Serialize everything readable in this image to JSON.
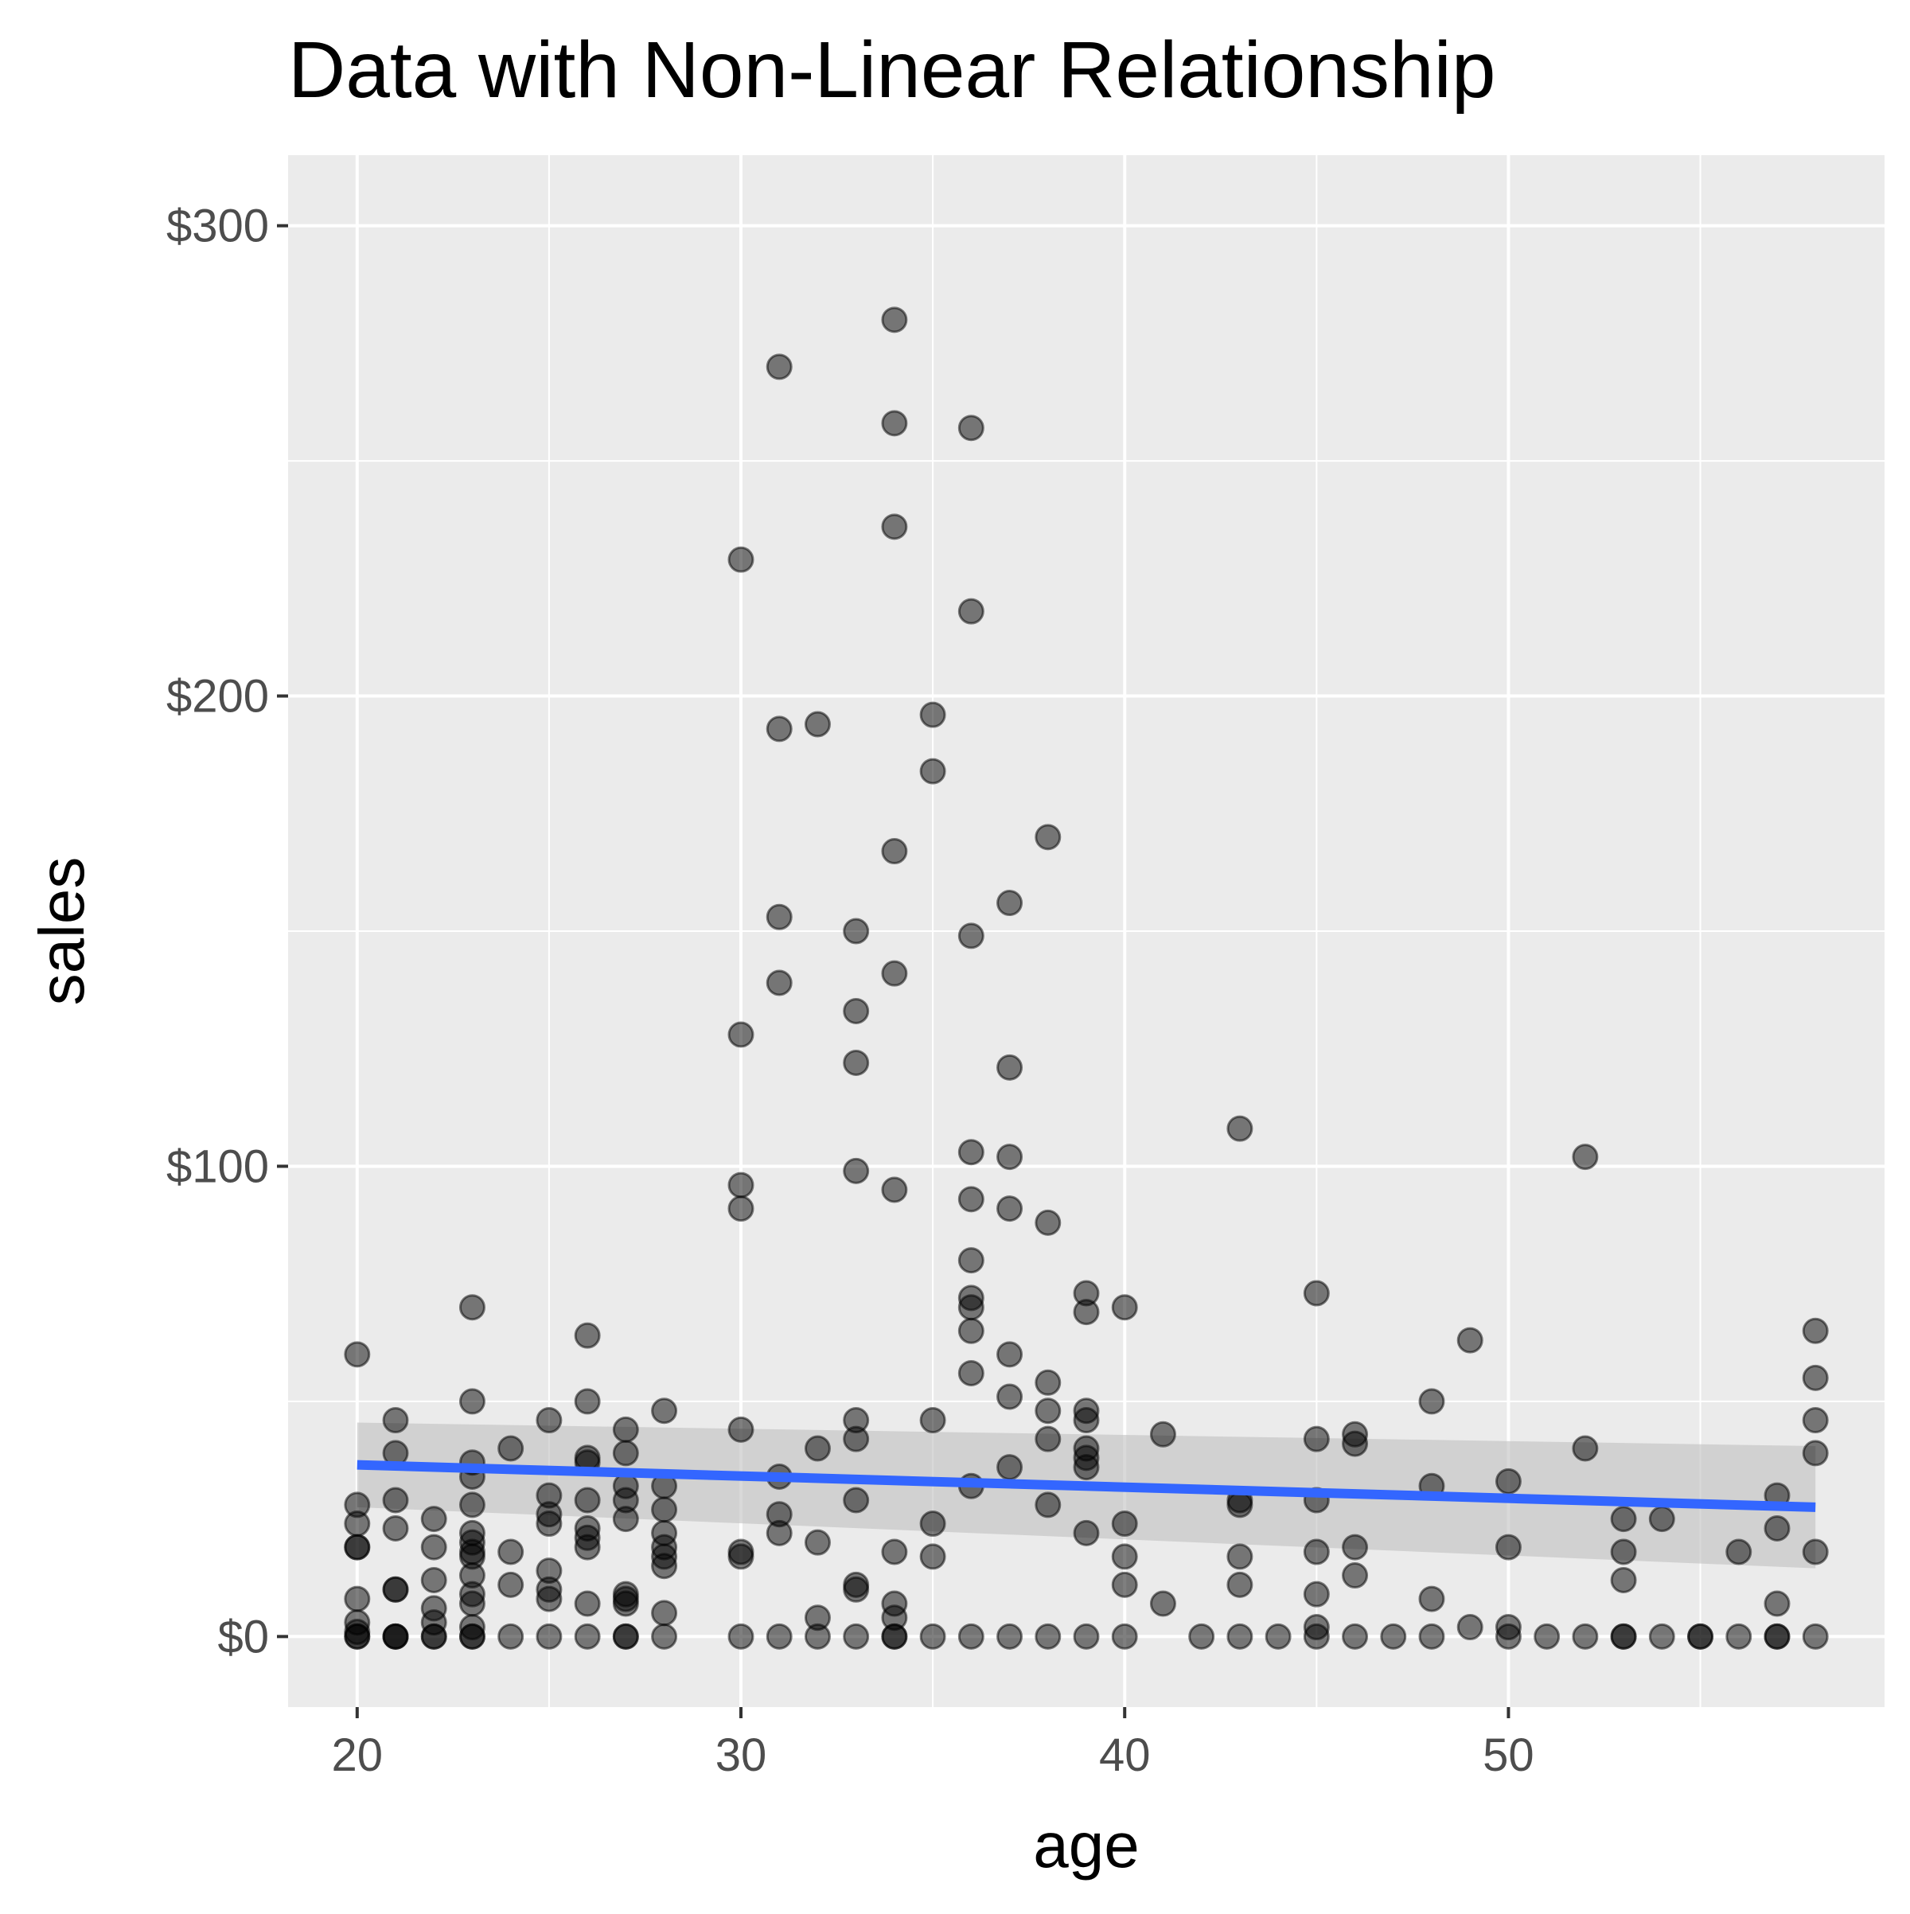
{
  "chart_data": {
    "type": "scatter",
    "title": "Data with Non-Linear Relationship",
    "xlabel": "age",
    "ylabel": "sales",
    "xlim": [
      18.2,
      59.8
    ],
    "ylim": [
      -15,
      315
    ],
    "x_ticks": [
      20,
      30,
      40,
      50
    ],
    "x_tick_labels": [
      "20",
      "30",
      "40",
      "50"
    ],
    "y_ticks": [
      0,
      100,
      200,
      300
    ],
    "y_tick_labels": [
      "$0",
      "$100",
      "$200",
      "$300"
    ],
    "grid": true,
    "legend": "none",
    "colors": {
      "panel": "#EBEBEB",
      "grid": "#FFFFFF",
      "point": "#000000",
      "trend": "#3366FF",
      "ribbon": "#BFBFBF",
      "tick_label": "#4D4D4D"
    },
    "trend_line": {
      "x": [
        20,
        58
      ],
      "y": [
        36.5,
        27.5
      ],
      "band_lower": [
        27.5,
        14.5
      ],
      "band_upper": [
        45.5,
        40.5
      ]
    },
    "points": [
      [
        20,
        60
      ],
      [
        20,
        28
      ],
      [
        20,
        24
      ],
      [
        20,
        19
      ],
      [
        20,
        19
      ],
      [
        20,
        8
      ],
      [
        20,
        3
      ],
      [
        20,
        1
      ],
      [
        20,
        0
      ],
      [
        20,
        0
      ],
      [
        21,
        46
      ],
      [
        21,
        39
      ],
      [
        21,
        29
      ],
      [
        21,
        23
      ],
      [
        21,
        10
      ],
      [
        21,
        10
      ],
      [
        21,
        0
      ],
      [
        21,
        0
      ],
      [
        21,
        0
      ],
      [
        22,
        25
      ],
      [
        22,
        19
      ],
      [
        22,
        12
      ],
      [
        22,
        6
      ],
      [
        22,
        3
      ],
      [
        22,
        0
      ],
      [
        22,
        0
      ],
      [
        23,
        70
      ],
      [
        23,
        50
      ],
      [
        23,
        37
      ],
      [
        23,
        34
      ],
      [
        23,
        28
      ],
      [
        23,
        22
      ],
      [
        23,
        20
      ],
      [
        23,
        18
      ],
      [
        23,
        17
      ],
      [
        23,
        13
      ],
      [
        23,
        9
      ],
      [
        23,
        7
      ],
      [
        23,
        2
      ],
      [
        23,
        0
      ],
      [
        23,
        0
      ],
      [
        24,
        40
      ],
      [
        24,
        18
      ],
      [
        24,
        11
      ],
      [
        24,
        0
      ],
      [
        25,
        46
      ],
      [
        25,
        30
      ],
      [
        25,
        26
      ],
      [
        25,
        24
      ],
      [
        25,
        14
      ],
      [
        25,
        10
      ],
      [
        25,
        8
      ],
      [
        25,
        0
      ],
      [
        26,
        64
      ],
      [
        26,
        50
      ],
      [
        26,
        38
      ],
      [
        26,
        37
      ],
      [
        26,
        29
      ],
      [
        26,
        23
      ],
      [
        26,
        21
      ],
      [
        26,
        19
      ],
      [
        26,
        7
      ],
      [
        26,
        0
      ],
      [
        27,
        44
      ],
      [
        27,
        39
      ],
      [
        27,
        32
      ],
      [
        27,
        29
      ],
      [
        27,
        25
      ],
      [
        27,
        9
      ],
      [
        27,
        8
      ],
      [
        27,
        7
      ],
      [
        27,
        0
      ],
      [
        27,
        0
      ],
      [
        28,
        48
      ],
      [
        28,
        32
      ],
      [
        28,
        27
      ],
      [
        28,
        22
      ],
      [
        28,
        19
      ],
      [
        28,
        17
      ],
      [
        28,
        15
      ],
      [
        28,
        5
      ],
      [
        28,
        0
      ],
      [
        30,
        229
      ],
      [
        30,
        128
      ],
      [
        30,
        96
      ],
      [
        30,
        91
      ],
      [
        30,
        44
      ],
      [
        30,
        18
      ],
      [
        30,
        17
      ],
      [
        30,
        0
      ],
      [
        31,
        270
      ],
      [
        31,
        193
      ],
      [
        31,
        153
      ],
      [
        31,
        139
      ],
      [
        31,
        34
      ],
      [
        31,
        26
      ],
      [
        31,
        22
      ],
      [
        31,
        0
      ],
      [
        32,
        194
      ],
      [
        32,
        40
      ],
      [
        32,
        20
      ],
      [
        32,
        4
      ],
      [
        32,
        0
      ],
      [
        33,
        150
      ],
      [
        33,
        133
      ],
      [
        33,
        122
      ],
      [
        33,
        99
      ],
      [
        33,
        46
      ],
      [
        33,
        42
      ],
      [
        33,
        29
      ],
      [
        33,
        11
      ],
      [
        33,
        10
      ],
      [
        33,
        0
      ],
      [
        34,
        280
      ],
      [
        34,
        258
      ],
      [
        34,
        236
      ],
      [
        34,
        167
      ],
      [
        34,
        141
      ],
      [
        34,
        95
      ],
      [
        34,
        18
      ],
      [
        34,
        7
      ],
      [
        34,
        4
      ],
      [
        34,
        0
      ],
      [
        34,
        0
      ],
      [
        35,
        196
      ],
      [
        35,
        184
      ],
      [
        35,
        46
      ],
      [
        35,
        24
      ],
      [
        35,
        17
      ],
      [
        35,
        0
      ],
      [
        36,
        257
      ],
      [
        36,
        218
      ],
      [
        36,
        149
      ],
      [
        36,
        103
      ],
      [
        36,
        93
      ],
      [
        36,
        80
      ],
      [
        36,
        72
      ],
      [
        36,
        70
      ],
      [
        36,
        65
      ],
      [
        36,
        56
      ],
      [
        36,
        32
      ],
      [
        36,
        0
      ],
      [
        37,
        156
      ],
      [
        37,
        121
      ],
      [
        37,
        102
      ],
      [
        37,
        91
      ],
      [
        37,
        60
      ],
      [
        37,
        51
      ],
      [
        37,
        36
      ],
      [
        37,
        0
      ],
      [
        38,
        170
      ],
      [
        38,
        88
      ],
      [
        38,
        54
      ],
      [
        38,
        48
      ],
      [
        38,
        42
      ],
      [
        38,
        28
      ],
      [
        38,
        0
      ],
      [
        39,
        73
      ],
      [
        39,
        69
      ],
      [
        39,
        48
      ],
      [
        39,
        46
      ],
      [
        39,
        40
      ],
      [
        39,
        38
      ],
      [
        39,
        36
      ],
      [
        39,
        22
      ],
      [
        39,
        0
      ],
      [
        40,
        70
      ],
      [
        40,
        24
      ],
      [
        40,
        17
      ],
      [
        40,
        11
      ],
      [
        40,
        0
      ],
      [
        41,
        43
      ],
      [
        41,
        7
      ],
      [
        42,
        0
      ],
      [
        43,
        108
      ],
      [
        43,
        29
      ],
      [
        43,
        28
      ],
      [
        43,
        17
      ],
      [
        43,
        11
      ],
      [
        43,
        0
      ],
      [
        44,
        0
      ],
      [
        45,
        73
      ],
      [
        45,
        42
      ],
      [
        45,
        29
      ],
      [
        45,
        18
      ],
      [
        45,
        9
      ],
      [
        45,
        2
      ],
      [
        45,
        0
      ],
      [
        46,
        43
      ],
      [
        46,
        41
      ],
      [
        46,
        19
      ],
      [
        46,
        13
      ],
      [
        46,
        0
      ],
      [
        47,
        0
      ],
      [
        48,
        50
      ],
      [
        48,
        32
      ],
      [
        48,
        8
      ],
      [
        48,
        0
      ],
      [
        49,
        63
      ],
      [
        49,
        2
      ],
      [
        50,
        33
      ],
      [
        50,
        19
      ],
      [
        50,
        2
      ],
      [
        50,
        0
      ],
      [
        51,
        0
      ],
      [
        52,
        102
      ],
      [
        52,
        40
      ],
      [
        52,
        0
      ],
      [
        53,
        25
      ],
      [
        53,
        18
      ],
      [
        53,
        12
      ],
      [
        53,
        0
      ],
      [
        53,
        0
      ],
      [
        54,
        25
      ],
      [
        54,
        0
      ],
      [
        55,
        0
      ],
      [
        55,
        0
      ],
      [
        56,
        18
      ],
      [
        56,
        0
      ],
      [
        57,
        30
      ],
      [
        57,
        23
      ],
      [
        57,
        7
      ],
      [
        57,
        0
      ],
      [
        57,
        0
      ],
      [
        58,
        65
      ],
      [
        58,
        55
      ],
      [
        58,
        46
      ],
      [
        58,
        39
      ],
      [
        58,
        18
      ],
      [
        58,
        0
      ]
    ]
  }
}
